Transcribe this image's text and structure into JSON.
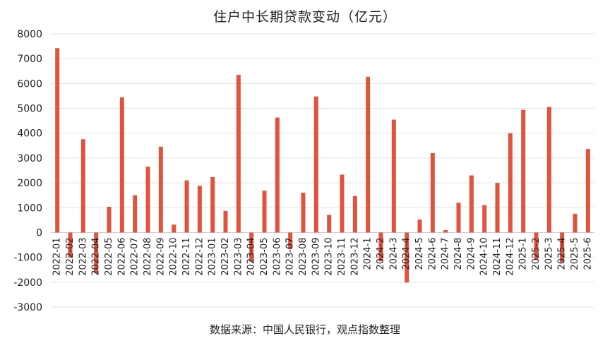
{
  "chart_data": {
    "type": "bar",
    "title": "住户中长期贷款变动（亿元）",
    "source": "数据来源：中国人民银行，观点指数整理",
    "xlabel": "",
    "ylabel": "",
    "ylim": [
      -3000,
      8000
    ],
    "yticks": [
      8000,
      7000,
      6000,
      5000,
      4000,
      3000,
      2000,
      1000,
      0,
      -1000,
      -2000,
      -3000
    ],
    "grid": true,
    "bar_color": "#e0533d",
    "categories": [
      "2022-01",
      "2022-02",
      "2022-03",
      "2022-04",
      "2022-05",
      "2022-06",
      "2022-07",
      "2022-08",
      "2022-09",
      "2022-10",
      "2022-11",
      "2022-12",
      "2023-01",
      "2023-02",
      "2023-03",
      "2023-04",
      "2023-05",
      "2023-06",
      "2023-07",
      "2023-08",
      "2023-09",
      "2023-10",
      "2023-11",
      "2023-12",
      "2024-1",
      "2024-2",
      "2024-3",
      "2024-4",
      "2024-5",
      "2024-6",
      "2024-7",
      "2024-8",
      "2024-9",
      "2024-10",
      "2024-11",
      "2024-12",
      "2025-1",
      "2025-2",
      "2025-3",
      "2025-4",
      "2025-5",
      "2025-6"
    ],
    "values": [
      7424,
      -1014,
      3757,
      -1642,
      1037,
      5443,
      1500,
      2650,
      3454,
      318,
      2100,
      1883,
      2231,
      868,
      6349,
      -1175,
      1684,
      4630,
      -672,
      1605,
      5480,
      706,
      2330,
      1469,
      6271,
      -1161,
      4547,
      -2015,
      521,
      3199,
      100,
      1200,
      2300,
      1104,
      2000,
      4000,
      4943,
      -1100,
      5055,
      -1200,
      757,
      3364
    ]
  }
}
